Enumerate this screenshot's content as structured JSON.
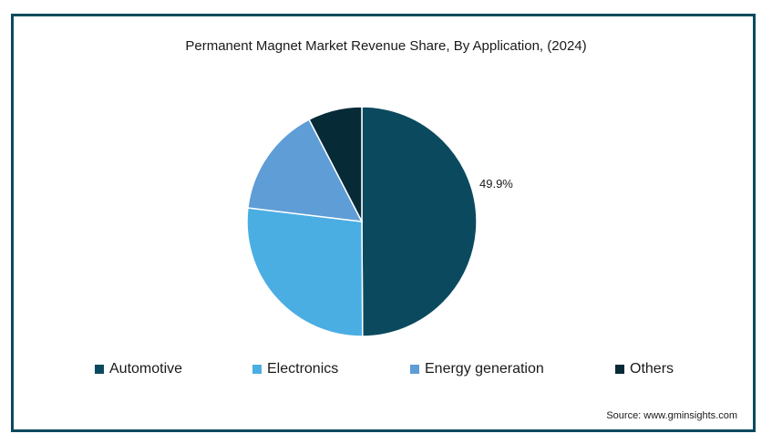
{
  "chart_data": {
    "type": "pie",
    "title": "Permanent Magnet Market Revenue Share, By  Application, (2024)",
    "slices": [
      {
        "name": "Automotive",
        "value": 49.9,
        "color": "#0b4a5e",
        "label": "49.9%"
      },
      {
        "name": "Electronics",
        "value": 27.0,
        "color": "#4aaee3",
        "label": ""
      },
      {
        "name": "Energy generation",
        "value": 15.5,
        "color": "#5e9dd6",
        "label": ""
      },
      {
        "name": "Others",
        "value": 7.6,
        "color": "#072a37",
        "label": ""
      }
    ],
    "legend_position": "bottom"
  },
  "source": "Source: www.gminsights.com"
}
